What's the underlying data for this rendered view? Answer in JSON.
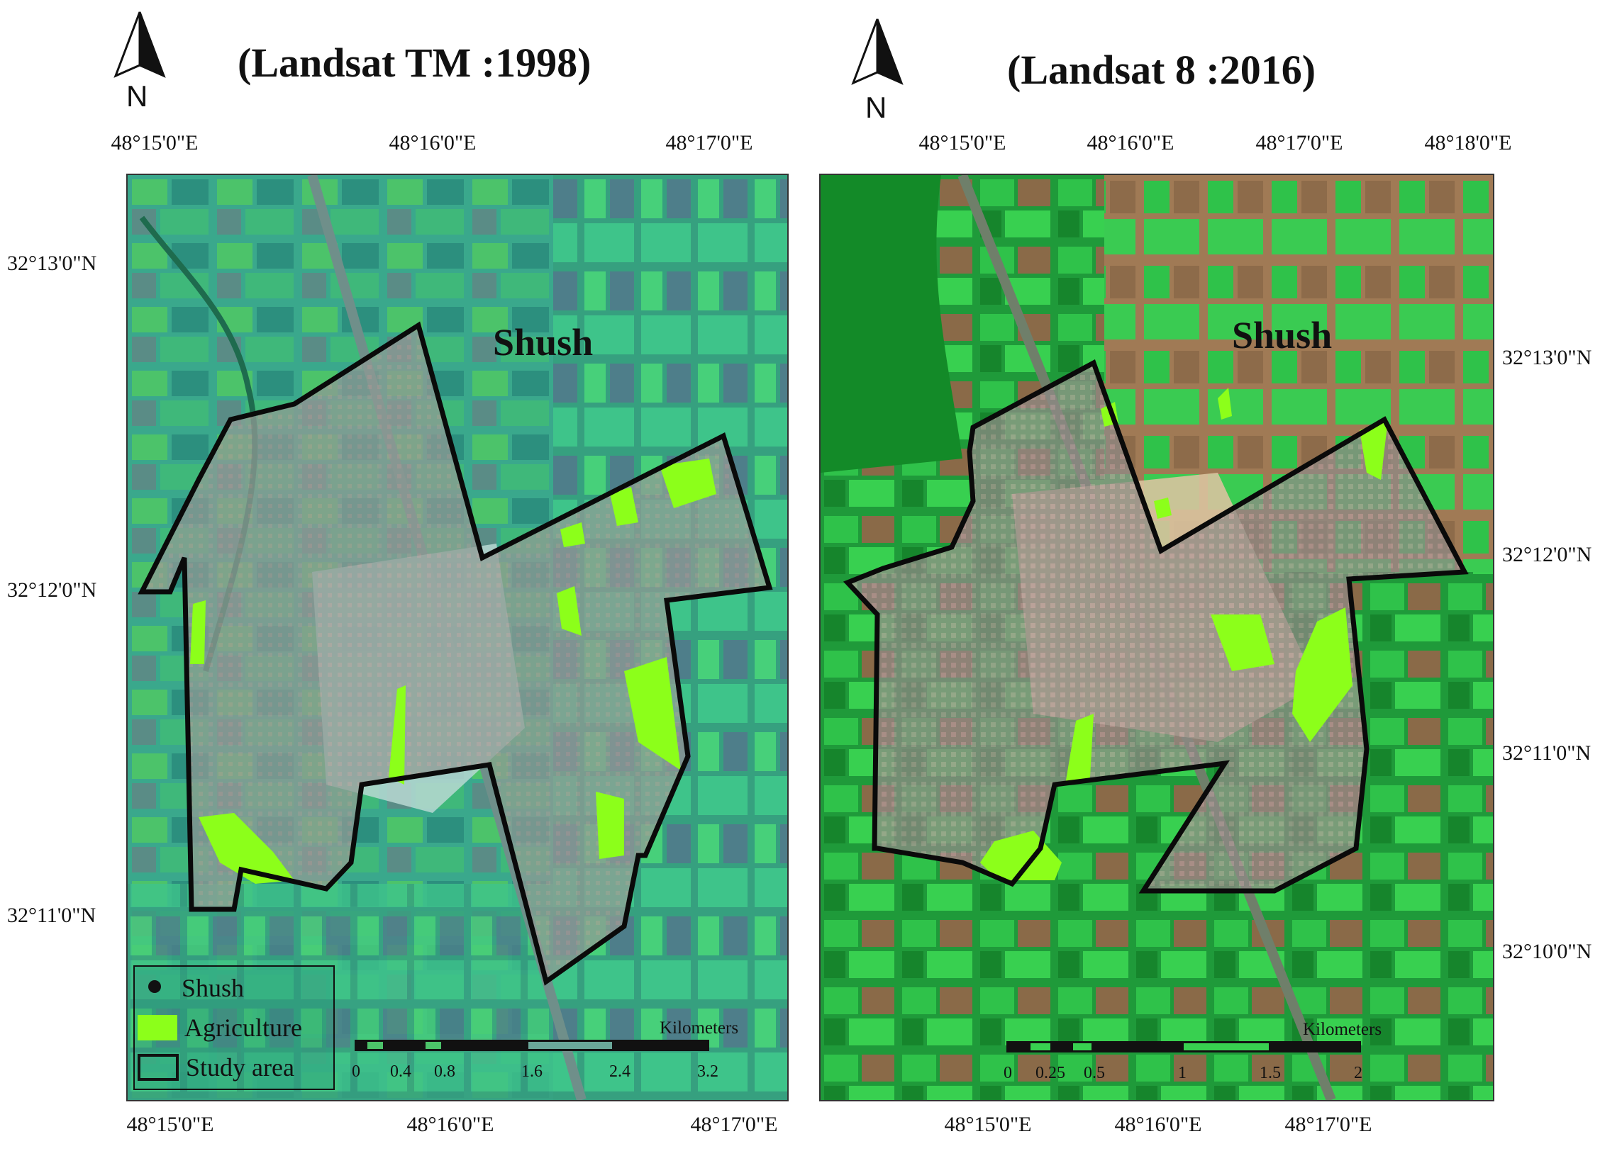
{
  "maps": [
    {
      "id": "left",
      "title": "(Landsat TM :1998)",
      "north_label": "N",
      "place_label": "Shush",
      "top_coords": [
        "48°15'0\"E",
        "48°16'0\"E",
        "48°17'0\"E"
      ],
      "bottom_coords": [
        "48°15'0\"E",
        "48°16'0\"E",
        "48°17'0\"E"
      ],
      "left_coords": [
        "32°13'0\"N",
        "32°12'0\"N",
        "32°11'0\"N"
      ],
      "scale_title": "Kilometers",
      "scale_ticks": [
        "0",
        "0.4",
        "0.8",
        "1.6",
        "2.4",
        "3.2"
      ],
      "legend": {
        "items": [
          {
            "label": "Shush",
            "symbol": "dot"
          },
          {
            "label": "Agriculture",
            "symbol": "green-fill"
          },
          {
            "label": "Study area",
            "symbol": "outline"
          }
        ]
      }
    },
    {
      "id": "right",
      "title": "(Landsat 8 :2016)",
      "north_label": "N",
      "place_label": "Shush",
      "top_coords": [
        "48°15'0\"E",
        "48°16'0\"E",
        "48°17'0\"E",
        "48°18'0\"E"
      ],
      "bottom_coords": [
        "48°15'0\"E",
        "48°16'0\"E",
        "48°17'0\"E"
      ],
      "right_coords": [
        "32°13'0\"N",
        "32°12'0\"N",
        "32°11'0\"N",
        "32°10'0\"N"
      ],
      "scale_title": "Kilometers",
      "scale_ticks": [
        "0",
        "0.25",
        "0.5",
        "1",
        "1.5",
        "2"
      ]
    }
  ],
  "colors": {
    "agriculture": "#8cff1a",
    "boundary": "#0a0a0a",
    "left_base": "#3aa88c",
    "right_base": "#1f9a3a",
    "urban": "#9a8f8a"
  }
}
